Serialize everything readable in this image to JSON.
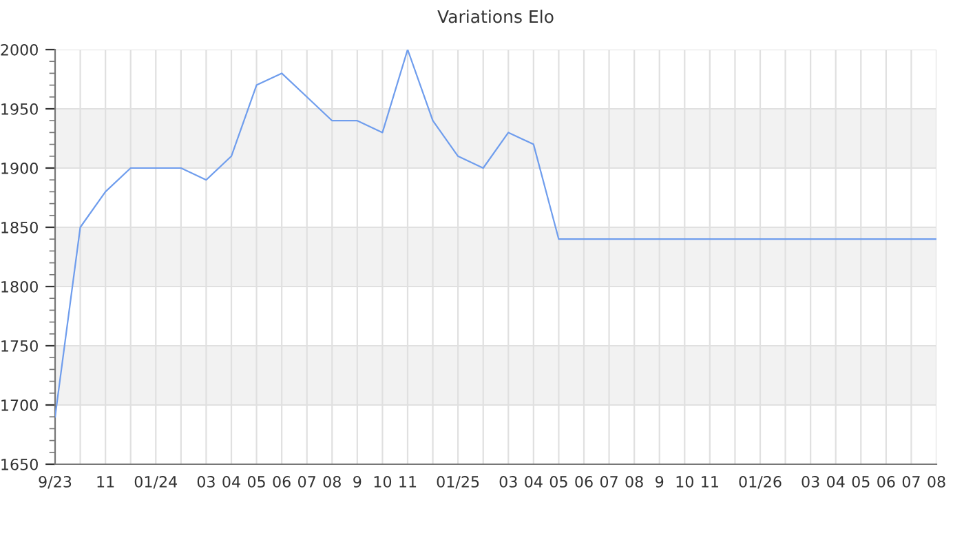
{
  "chart_data": {
    "type": "line",
    "title": "Variations Elo",
    "categories": [
      "9/23",
      null,
      "11",
      null,
      "01/24",
      null,
      "03",
      "04",
      "05",
      "06",
      "07",
      "08",
      "9",
      "10",
      "11",
      null,
      "01/25",
      null,
      "03",
      "04",
      "05",
      "06",
      "07",
      "08",
      "9",
      "10",
      "11",
      null,
      "01/26",
      null,
      "03",
      "04",
      "05",
      "06",
      "07",
      "08"
    ],
    "series": [
      {
        "color": "#6f9ded",
        "values": [
          1690,
          1850,
          1880,
          1900,
          1900,
          1900,
          1890,
          1910,
          1970,
          1980,
          1960,
          1940,
          1940,
          1930,
          2000,
          1940,
          1910,
          1900,
          1930,
          1920,
          1840,
          1840,
          1840,
          1840,
          1840,
          1840,
          1840,
          1840,
          1840,
          1840,
          1840,
          1840,
          1840,
          1840,
          1840,
          1840
        ]
      }
    ],
    "ylim": [
      1650,
      2000
    ],
    "yticks": [
      1650,
      1700,
      1750,
      1800,
      1850,
      1900,
      1950,
      2000
    ],
    "bands": [
      {
        "axis": "y",
        "from": 1700,
        "to": 1750,
        "color": "#f2f2f2"
      },
      {
        "axis": "y",
        "from": 1800,
        "to": 1850,
        "color": "#f2f2f2"
      },
      {
        "axis": "y",
        "from": 1900,
        "to": 1950,
        "color": "#f2f2f2"
      }
    ],
    "grid": true,
    "legend": false,
    "marker": "none",
    "line_style": "solid"
  }
}
